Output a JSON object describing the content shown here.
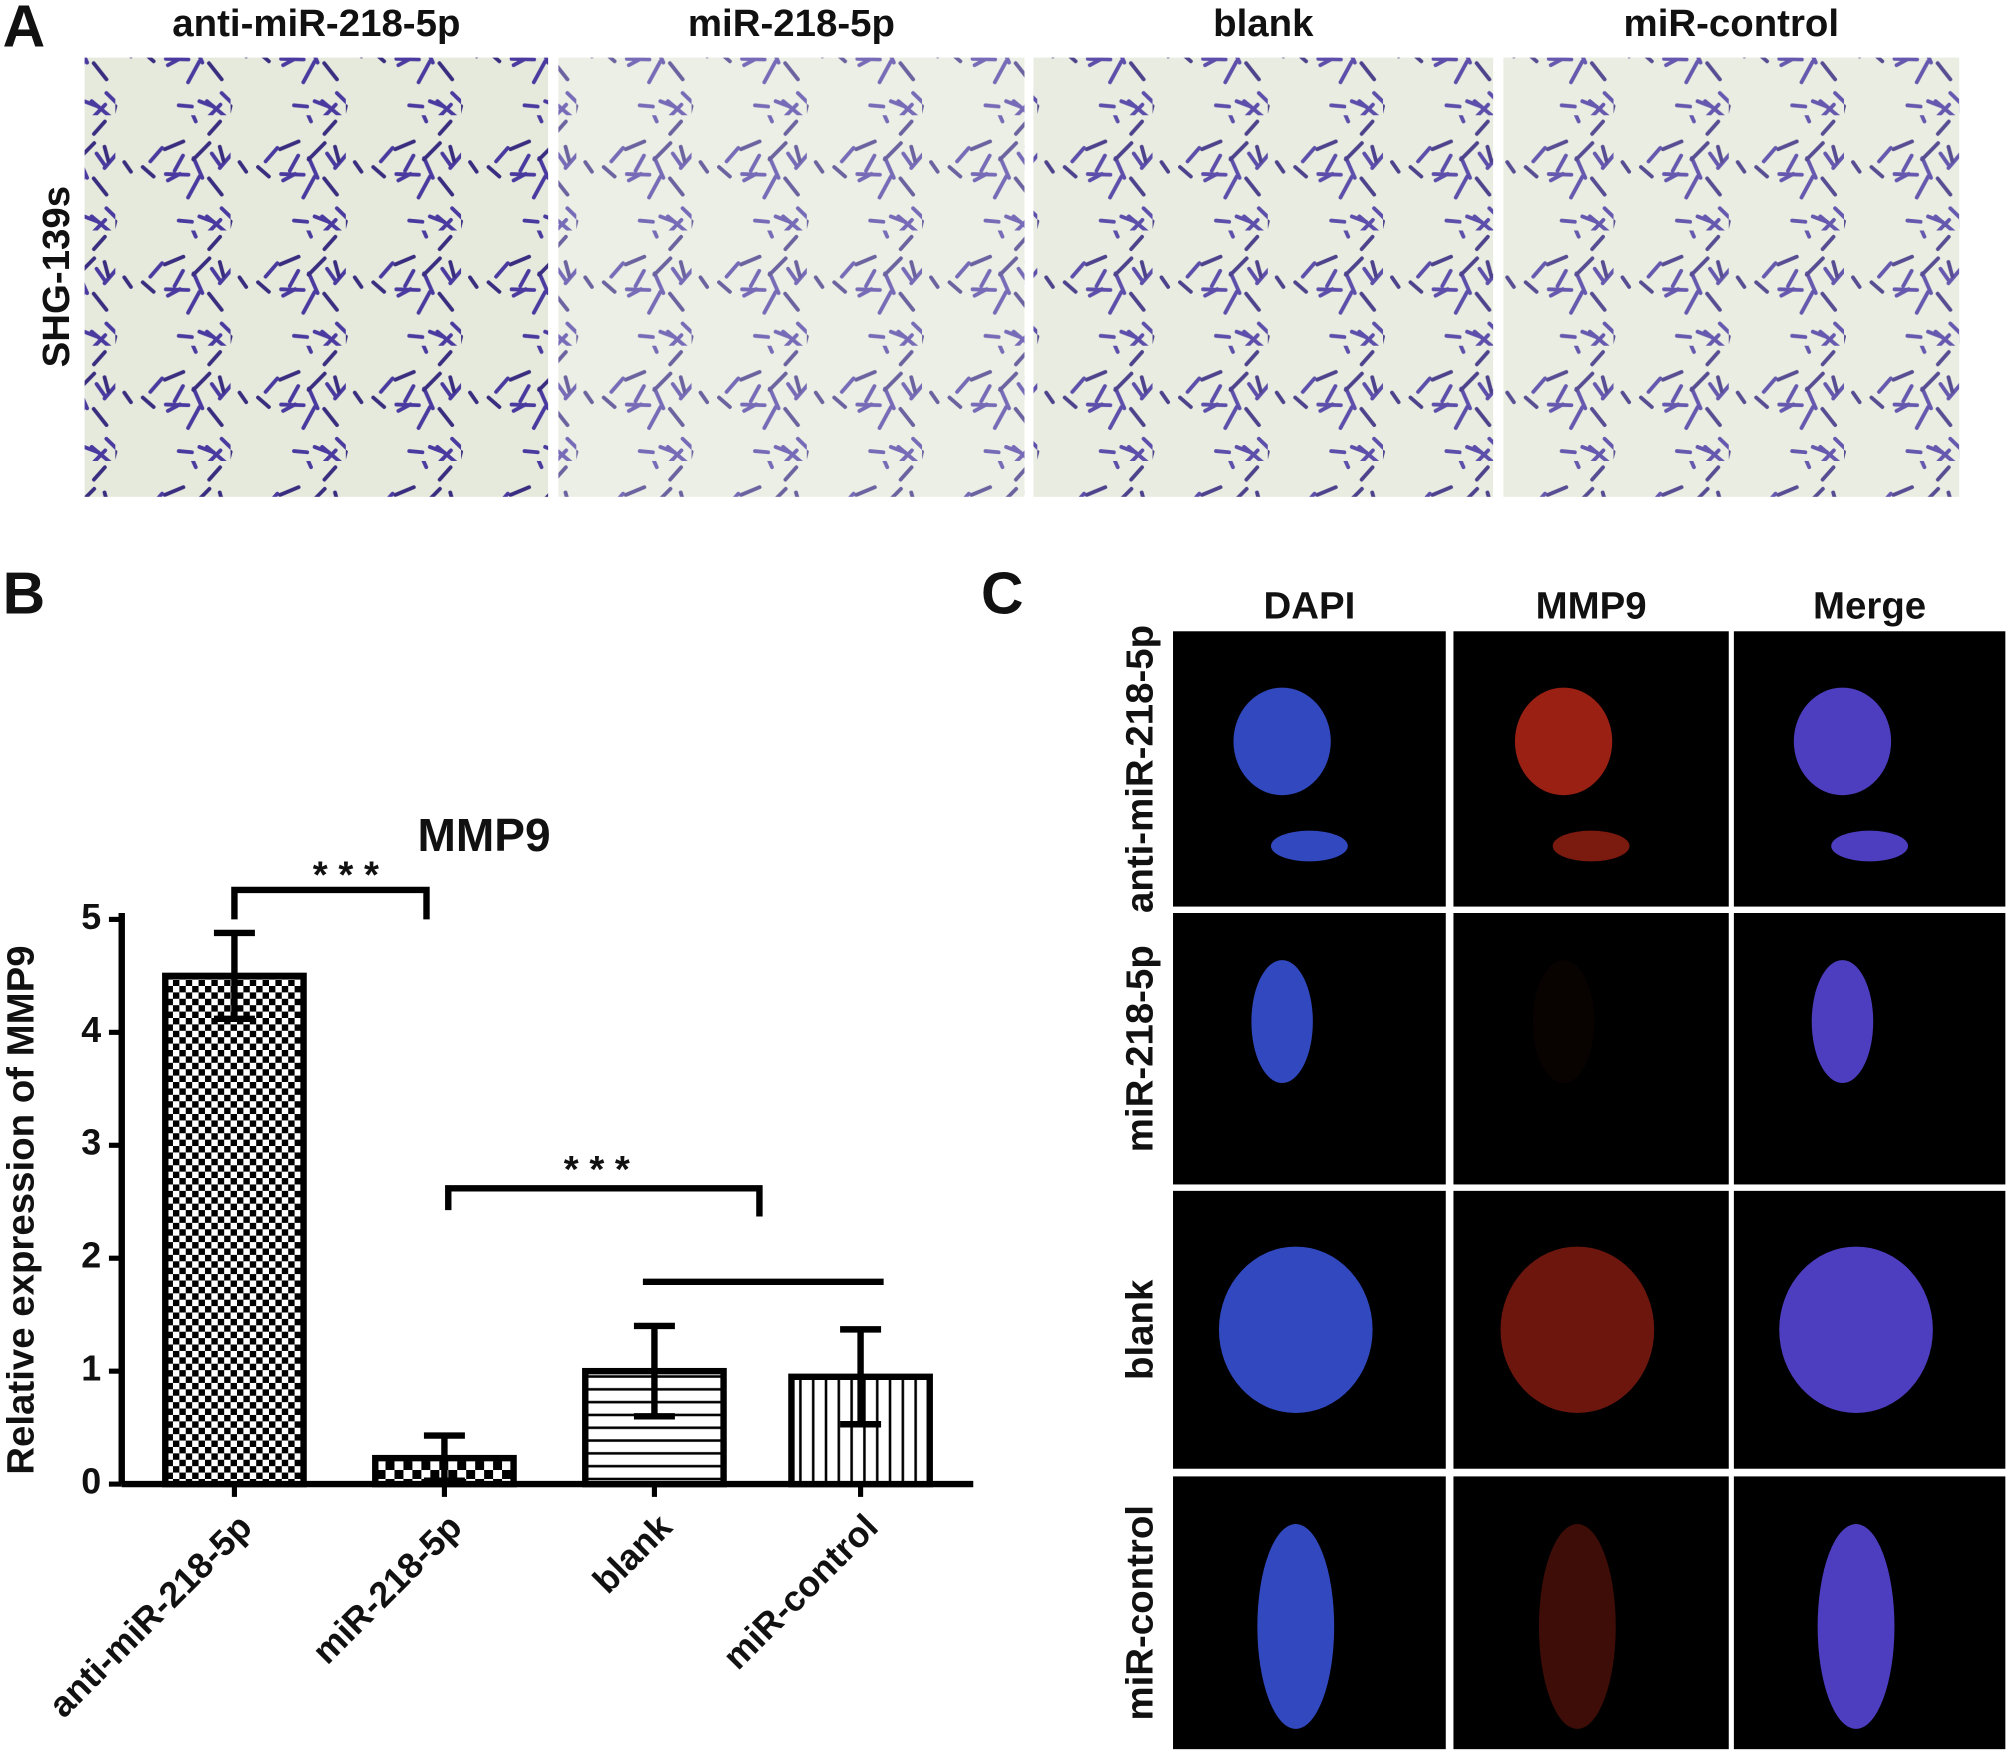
{
  "panel_a": {
    "label": "A",
    "row_label": "SHG-139s",
    "columns": [
      "anti-miR-218-5p",
      "miR-218-5p",
      "blank",
      "miR-control"
    ]
  },
  "chart_data": {
    "type": "bar",
    "panel_label": "B",
    "title": "MMP9",
    "y_label": "Relative expression of MMP9",
    "categories": [
      "anti-miR-218-5p",
      "miR-218-5p",
      "blank",
      "miR-control"
    ],
    "values": [
      4.5,
      0.23,
      1.0,
      0.95
    ],
    "errors": [
      0.38,
      0.2,
      0.4,
      0.42
    ],
    "color": "#000000",
    "ylim": [
      0,
      5
    ],
    "yticks": [
      0,
      1,
      2,
      3,
      4,
      5
    ],
    "grid": false,
    "annotations": [
      "* * *",
      "* * *"
    ]
  },
  "panel_c": {
    "label": "C",
    "columns": [
      "DAPI",
      "MMP9",
      "Merge"
    ],
    "rows": [
      "anti-miR-218-5p",
      "miR-218-5p",
      "blank",
      "miR-control"
    ]
  }
}
